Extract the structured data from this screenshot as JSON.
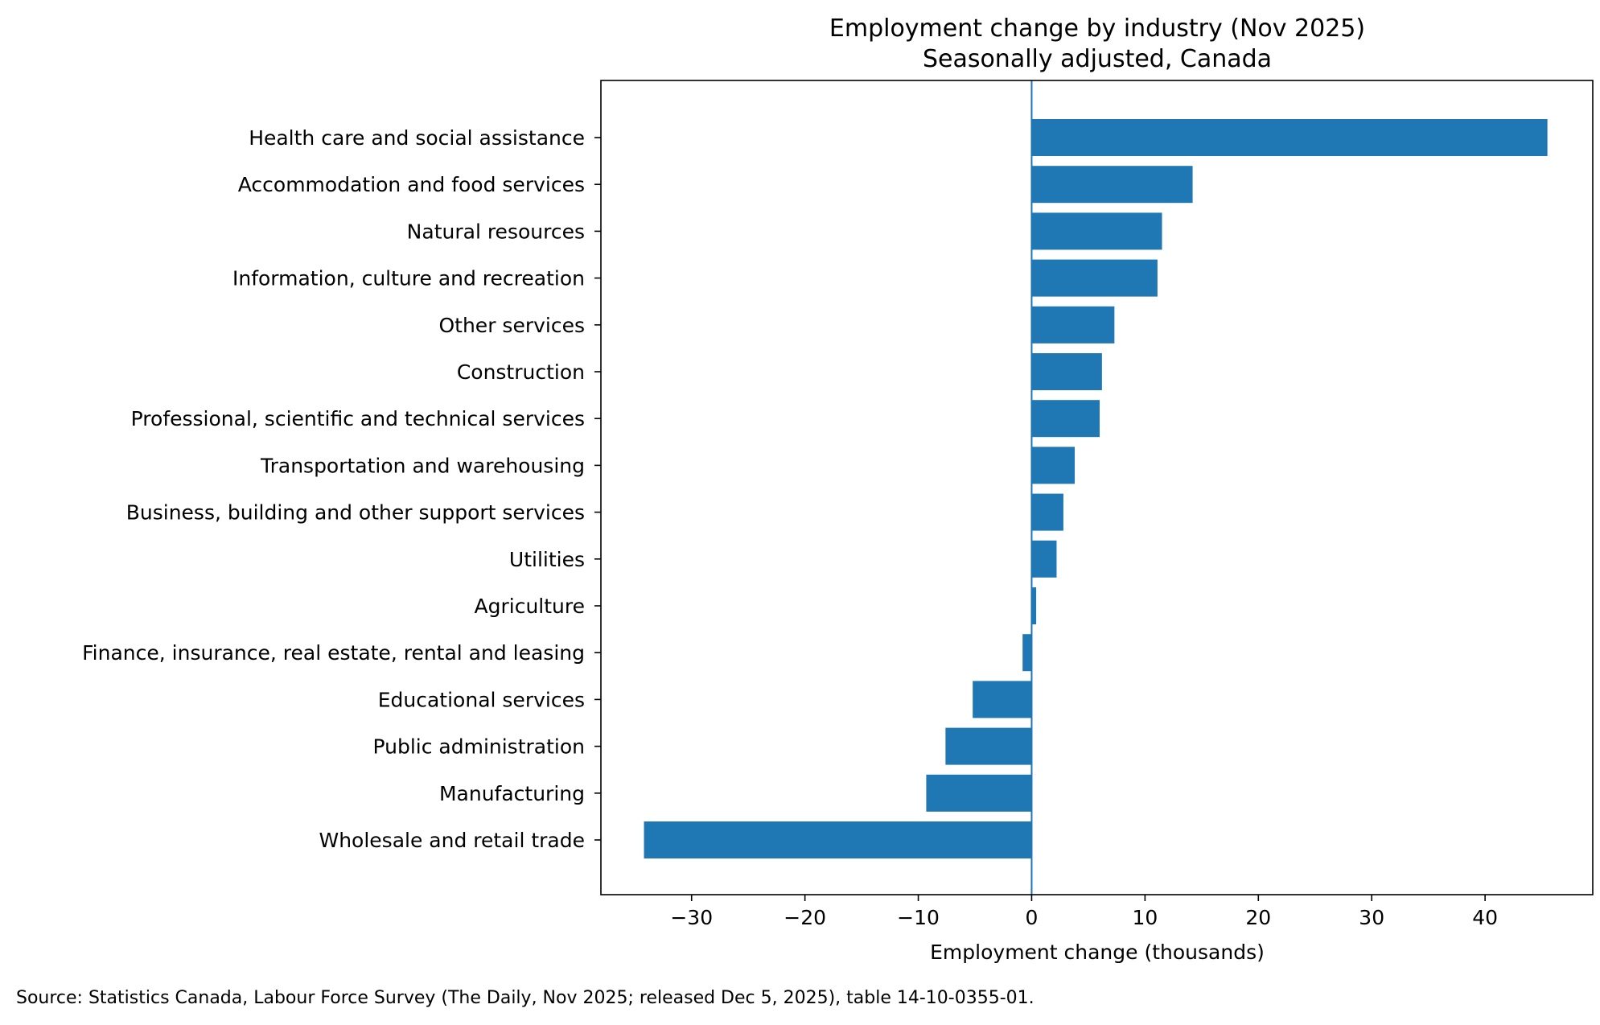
{
  "chart_data": {
    "type": "bar",
    "orientation": "horizontal",
    "title": "Employment change by industry (Nov 2025)",
    "subtitle": "Seasonally adjusted, Canada",
    "xlabel": "Employment change (thousands)",
    "ylabel": "",
    "xlim": [
      -38,
      49.5
    ],
    "xticks": [
      -30,
      -20,
      -10,
      0,
      10,
      20,
      30,
      40
    ],
    "xtick_labels": [
      "−30",
      "−20",
      "−10",
      "0",
      "10",
      "20",
      "30",
      "40"
    ],
    "grid": false,
    "bar_color": "#1f77b4",
    "zero_line_color": "#1f77b4",
    "categories": [
      "Health care and social assistance",
      "Accommodation and food services",
      "Natural resources",
      "Information, culture and recreation",
      "Other services",
      "Construction",
      "Professional, scientific and technical services",
      "Transportation and warehousing",
      "Business, building and other support services",
      "Utilities",
      "Agriculture",
      "Finance, insurance, real estate, rental and leasing",
      "Educational services",
      "Public administration",
      "Manufacturing",
      "Wholesale and retail trade"
    ],
    "values": [
      45.5,
      14.2,
      11.5,
      11.1,
      7.3,
      6.2,
      6.0,
      3.8,
      2.8,
      2.2,
      0.4,
      -0.8,
      -5.2,
      -7.6,
      -9.3,
      -34.2
    ]
  },
  "source": "Source: Statistics Canada, Labour Force Survey (The Daily, Nov 2025; released Dec 5, 2025), table 14-10-0355-01."
}
